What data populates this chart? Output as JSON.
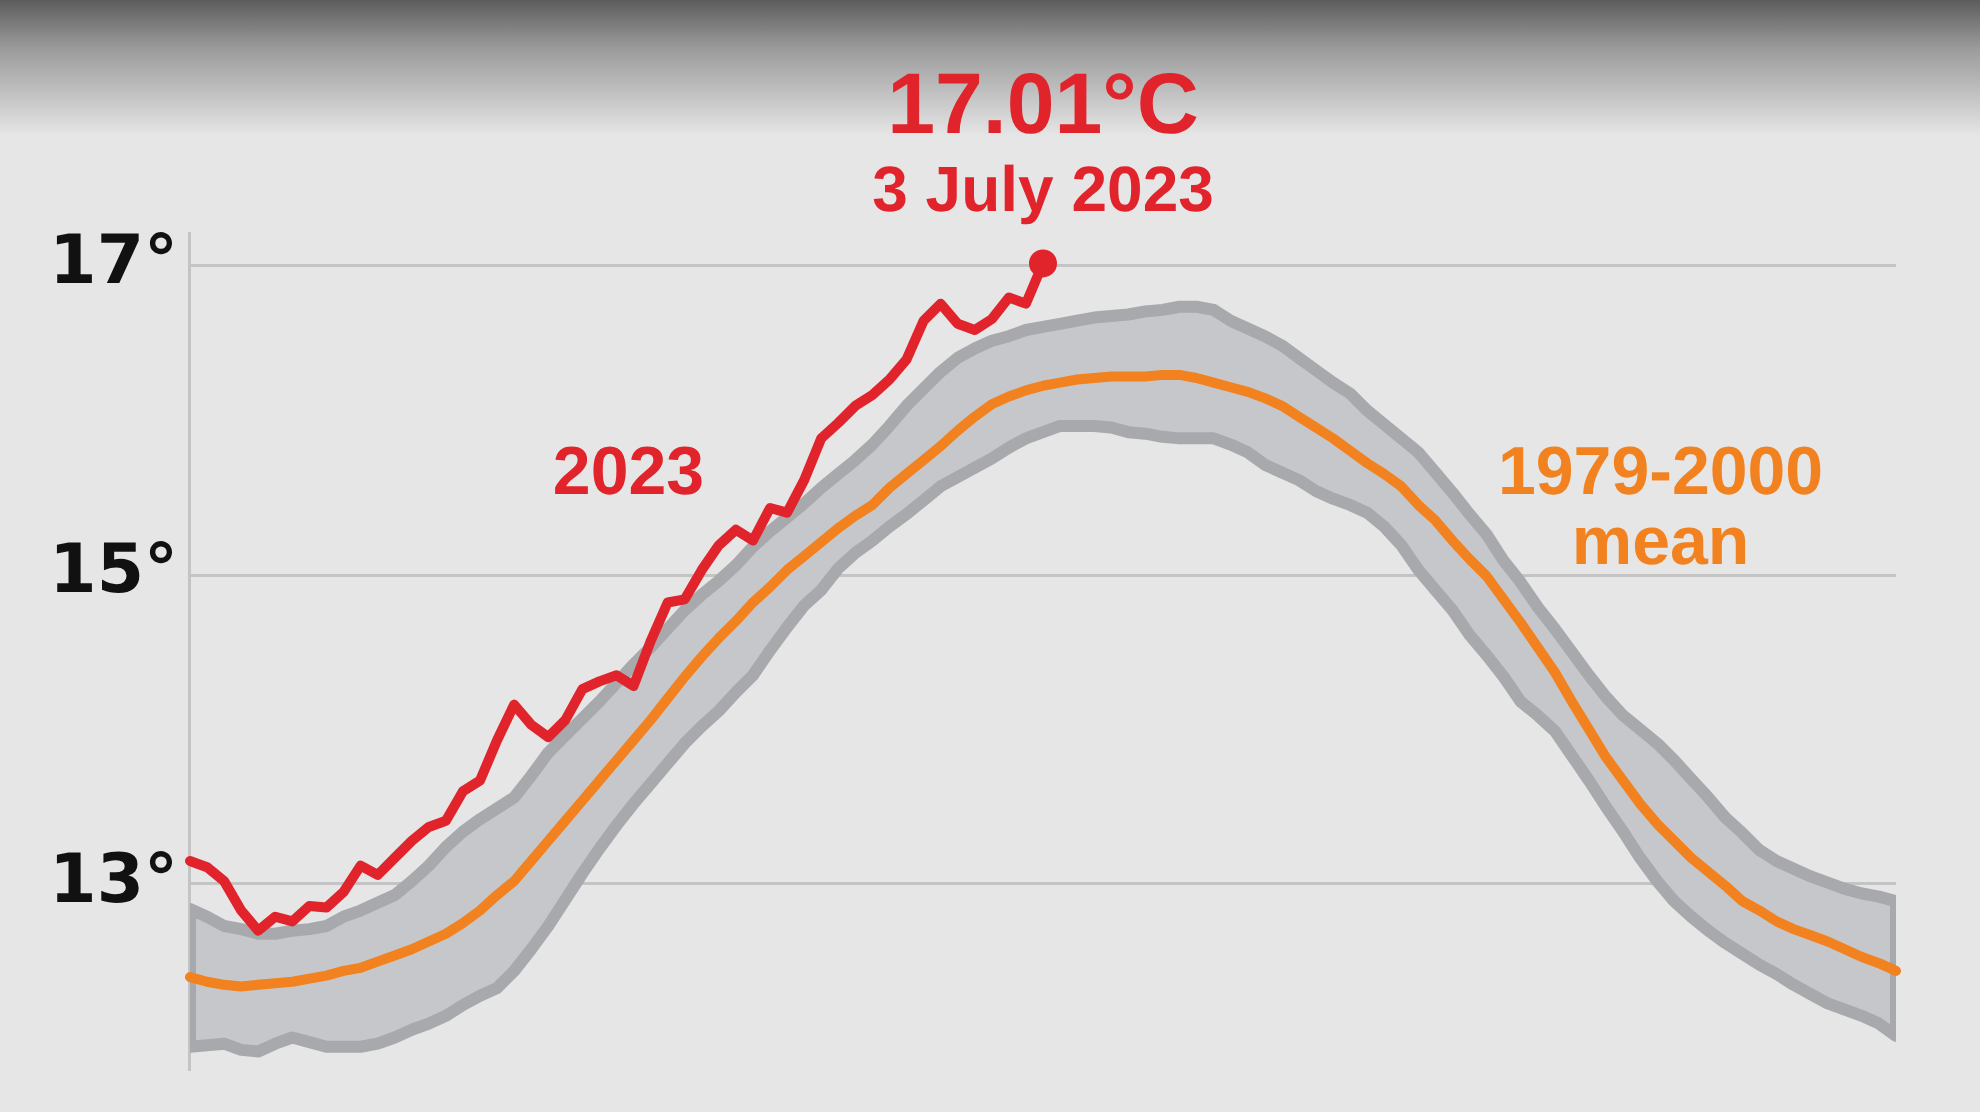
{
  "chart_data": {
    "type": "line",
    "categories": [
      null,
      null,
      null,
      null,
      null,
      null,
      null,
      null,
      null,
      null,
      null,
      null,
      null,
      null,
      null,
      null,
      null,
      null,
      null,
      null,
      null,
      null,
      null,
      null,
      null,
      null,
      null,
      null,
      null,
      null,
      null,
      null,
      null,
      null,
      null,
      null,
      null,
      null,
      null,
      null,
      null,
      null,
      null,
      null,
      null,
      null,
      null,
      null,
      null,
      null,
      null,
      null,
      null,
      null,
      null,
      null,
      null,
      null,
      null,
      null,
      null,
      null,
      null,
      null,
      null,
      null,
      null,
      null,
      null,
      null,
      null,
      null,
      null,
      null,
      null,
      null,
      null,
      null,
      null,
      null,
      null,
      null,
      null,
      null,
      null,
      null,
      null,
      null,
      null,
      null,
      null,
      null,
      null,
      null,
      null,
      null,
      null,
      null,
      null,
      null,
      null
    ],
    "series": [
      {
        "name": "1979-2000 mean",
        "color": "#f2821f",
        "values": [
          12.4,
          12.37,
          12.35,
          12.34,
          12.35,
          12.36,
          12.37,
          12.39,
          12.41,
          12.44,
          12.46,
          12.5,
          12.54,
          12.58,
          12.63,
          12.68,
          12.75,
          12.83,
          12.93,
          13.02,
          13.15,
          13.28,
          13.41,
          13.54,
          13.67,
          13.8,
          13.93,
          14.06,
          14.2,
          14.34,
          14.47,
          14.59,
          14.7,
          14.82,
          14.92,
          15.03,
          15.12,
          15.21,
          15.3,
          15.38,
          15.45,
          15.56,
          15.65,
          15.74,
          15.83,
          15.93,
          16.02,
          16.1,
          16.15,
          16.19,
          16.22,
          16.24,
          16.26,
          16.27,
          16.28,
          16.28,
          16.28,
          16.29,
          16.29,
          16.27,
          16.24,
          16.21,
          16.18,
          16.14,
          16.09,
          16.02,
          15.95,
          15.88,
          15.8,
          15.72,
          15.65,
          15.57,
          15.45,
          15.35,
          15.22,
          15.1,
          14.99,
          14.84,
          14.69,
          14.53,
          14.37,
          14.18,
          14.0,
          13.82,
          13.67,
          13.52,
          13.39,
          13.28,
          13.17,
          13.08,
          12.99,
          12.89,
          12.83,
          12.76,
          12.71,
          12.67,
          12.63,
          12.58,
          12.53,
          12.49,
          12.44
        ],
        "upper": [
          12.84,
          12.79,
          12.73,
          12.71,
          12.68,
          12.68,
          12.7,
          12.71,
          12.73,
          12.79,
          12.83,
          12.88,
          12.93,
          13.02,
          13.12,
          13.24,
          13.34,
          13.42,
          13.49,
          13.56,
          13.7,
          13.85,
          13.96,
          14.07,
          14.18,
          14.3,
          14.42,
          14.53,
          14.65,
          14.77,
          14.87,
          14.96,
          15.06,
          15.18,
          15.28,
          15.37,
          15.46,
          15.56,
          15.65,
          15.74,
          15.84,
          15.96,
          16.09,
          16.2,
          16.31,
          16.4,
          16.46,
          16.51,
          16.54,
          16.58,
          16.6,
          16.62,
          16.64,
          16.66,
          16.67,
          16.68,
          16.7,
          16.71,
          16.73,
          16.73,
          16.71,
          16.64,
          16.59,
          16.54,
          16.48,
          16.4,
          16.32,
          16.24,
          16.17,
          16.06,
          15.97,
          15.88,
          15.79,
          15.66,
          15.53,
          15.39,
          15.26,
          15.09,
          14.95,
          14.79,
          14.65,
          14.5,
          14.35,
          14.21,
          14.09,
          14.0,
          13.91,
          13.8,
          13.68,
          13.56,
          13.43,
          13.33,
          13.22,
          13.15,
          13.1,
          13.05,
          13.01,
          12.97,
          12.94,
          12.92,
          12.89
        ],
        "lower": [
          11.95,
          11.96,
          11.97,
          11.93,
          11.92,
          11.97,
          12.01,
          11.98,
          11.95,
          11.95,
          11.95,
          11.97,
          12.01,
          12.06,
          12.1,
          12.15,
          12.22,
          12.28,
          12.33,
          12.44,
          12.58,
          12.73,
          12.9,
          13.07,
          13.23,
          13.38,
          13.52,
          13.65,
          13.78,
          13.91,
          14.02,
          14.12,
          14.24,
          14.35,
          14.51,
          14.66,
          14.8,
          14.9,
          15.04,
          15.14,
          15.22,
          15.31,
          15.39,
          15.48,
          15.57,
          15.63,
          15.69,
          15.75,
          15.82,
          15.88,
          15.92,
          15.96,
          15.96,
          15.96,
          15.95,
          15.92,
          15.91,
          15.89,
          15.88,
          15.88,
          15.88,
          15.84,
          15.79,
          15.71,
          15.66,
          15.61,
          15.54,
          15.49,
          15.45,
          15.4,
          15.31,
          15.19,
          15.03,
          14.9,
          14.77,
          14.61,
          14.48,
          14.34,
          14.18,
          14.09,
          13.99,
          13.83,
          13.67,
          13.5,
          13.34,
          13.17,
          13.02,
          12.89,
          12.79,
          12.7,
          12.62,
          12.55,
          12.48,
          12.42,
          12.35,
          12.29,
          12.23,
          12.19,
          12.15,
          12.1,
          12.02
        ]
      },
      {
        "name": "2023",
        "color": "#e1242b",
        "values": [
          13.15,
          13.11,
          13.02,
          12.83,
          12.7,
          12.79,
          12.76,
          12.86,
          12.85,
          12.95,
          13.12,
          13.06,
          13.17,
          13.28,
          13.37,
          13.41,
          13.6,
          13.67,
          13.93,
          14.16,
          14.03,
          13.95,
          14.06,
          14.26,
          14.31,
          14.35,
          14.28,
          14.57,
          14.82,
          14.84,
          15.03,
          15.19,
          15.29,
          15.22,
          15.43,
          15.4,
          15.61,
          15.88,
          15.98,
          16.09,
          16.16,
          16.26,
          16.39,
          16.64,
          16.75,
          16.62,
          16.58,
          16.65,
          16.79,
          16.75,
          17.01,
          null,
          null,
          null,
          null,
          null,
          null,
          null,
          null,
          null,
          null,
          null,
          null,
          null,
          null,
          null,
          null,
          null,
          null,
          null,
          null,
          null,
          null,
          null,
          null,
          null,
          null,
          null,
          null,
          null,
          null,
          null,
          null,
          null,
          null,
          null,
          null,
          null,
          null,
          null,
          null,
          null,
          null,
          null,
          null,
          null,
          null,
          null,
          null,
          null,
          null
        ]
      },
      {
        "type": "scatter",
        "color": "#e1242b",
        "marker": "circle",
        "values": [
          null,
          null,
          null,
          null,
          null,
          null,
          null,
          null,
          null,
          null,
          null,
          null,
          null,
          null,
          null,
          null,
          null,
          null,
          null,
          null,
          null,
          null,
          null,
          null,
          null,
          null,
          null,
          null,
          null,
          null,
          null,
          null,
          null,
          null,
          null,
          null,
          null,
          null,
          null,
          null,
          null,
          null,
          null,
          null,
          null,
          null,
          null,
          null,
          null,
          null,
          17.01,
          null,
          null,
          null,
          null,
          null,
          null,
          null,
          null,
          null,
          null,
          null,
          null,
          null,
          null,
          null,
          null,
          null,
          null,
          null,
          null,
          null,
          null,
          null,
          null,
          null,
          null,
          null,
          null,
          null,
          null,
          null,
          null,
          null,
          null,
          null,
          null,
          null,
          null,
          null,
          null,
          null,
          null,
          null,
          null,
          null,
          null,
          null,
          null,
          null,
          null
        ],
        "value_labels": [
          null,
          null,
          null,
          null,
          null,
          null,
          null,
          null,
          null,
          null,
          null,
          null,
          null,
          null,
          null,
          null,
          null,
          null,
          null,
          null,
          null,
          null,
          null,
          null,
          null,
          null,
          null,
          null,
          null,
          null,
          null,
          null,
          null,
          null,
          null,
          null,
          null,
          null,
          null,
          null,
          null,
          null,
          null,
          null,
          null,
          null,
          null,
          null,
          null,
          null,
          "17.01°C",
          null,
          null,
          null,
          null,
          null,
          null,
          null,
          null,
          null,
          null,
          null,
          null,
          null,
          null,
          null,
          null,
          null,
          null,
          null,
          null,
          null,
          null,
          null,
          null,
          null,
          null,
          null,
          null,
          null,
          null,
          null,
          null,
          null,
          null,
          null,
          null,
          null,
          null,
          null,
          null,
          null,
          null,
          null,
          null,
          null,
          null,
          null,
          null,
          null,
          null
        ]
      }
    ],
    "annotations": [
      "3 July 2023"
    ],
    "ylim": [
      11.8,
      17.2
    ],
    "yticks": [
      {
        "value": 13,
        "label": "13°"
      },
      {
        "value": 15,
        "label": "15°"
      },
      {
        "value": 17,
        "label": "17°"
      }
    ],
    "grid": "y",
    "marker": "none",
    "line_style": "solid"
  }
}
